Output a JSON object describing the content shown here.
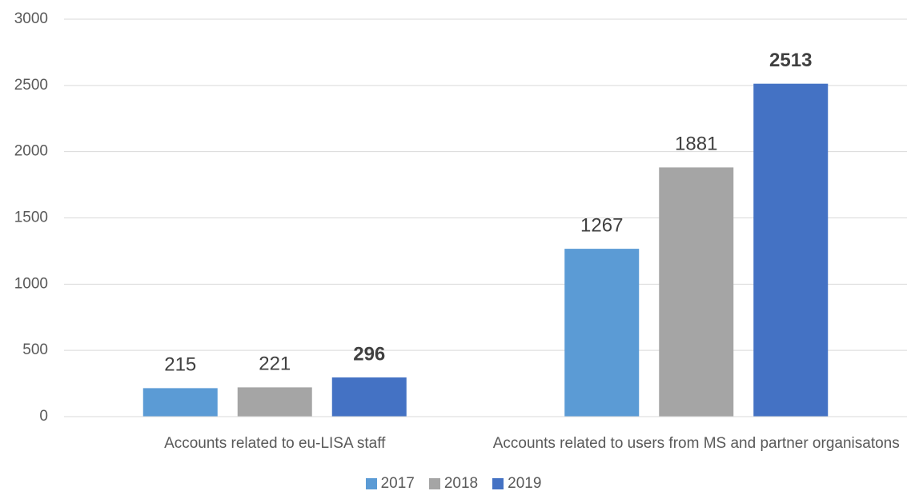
{
  "chart_data": {
    "type": "bar",
    "categories": [
      "Accounts related to eu-LISA staff",
      "Accounts related to users from MS and partner organisatons"
    ],
    "series": [
      {
        "name": "2017",
        "color": "#5b9bd5",
        "values": [
          215,
          1267
        ]
      },
      {
        "name": "2018",
        "color": "#a5a5a5",
        "values": [
          221,
          1881
        ]
      },
      {
        "name": "2019",
        "color": "#4472c4",
        "values": [
          296,
          2513
        ],
        "label_bold": true
      }
    ],
    "ylim": [
      0,
      3000
    ],
    "yticks": [
      0,
      500,
      1000,
      1500,
      2000,
      2500,
      3000
    ],
    "grid": true,
    "legend": "bottom"
  }
}
